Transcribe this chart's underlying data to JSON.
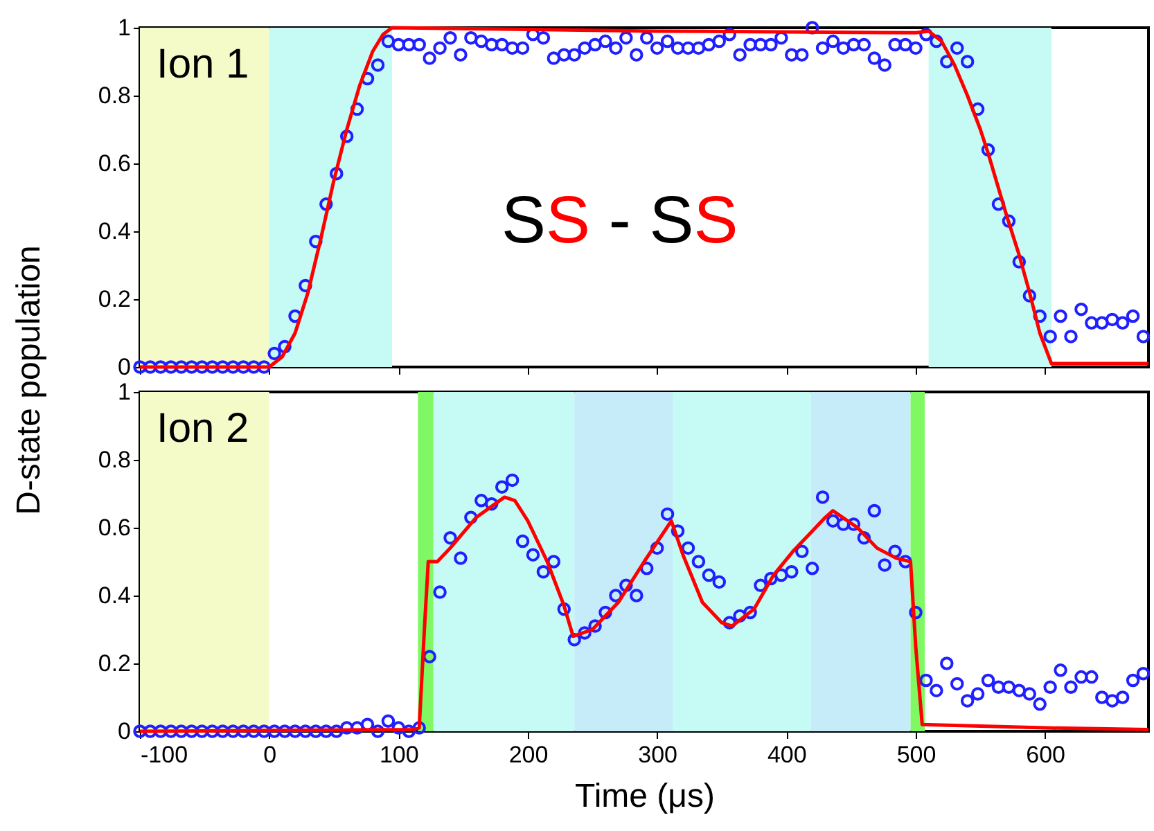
{
  "chart_data": [
    {
      "type": "scatter",
      "ylabel": "D-state population",
      "annotations": [
        "Ion 1",
        "SS - SS"
      ],
      "xlim": [
        -100,
        680
      ],
      "ylim": [
        0,
        1
      ],
      "xticks": [
        -100,
        0,
        100,
        200,
        300,
        400,
        500,
        600
      ],
      "yticks": [
        0,
        0.2,
        0.4,
        0.6,
        0.8,
        1
      ],
      "tick_labels": "y",
      "grid": false,
      "bands": [
        {
          "axis": "x",
          "from": -100,
          "to": 0,
          "color": "#f4fac8"
        },
        {
          "axis": "x",
          "from": 0,
          "to": 95,
          "color": "#c6faf4"
        },
        {
          "axis": "x",
          "from": 510,
          "to": 605,
          "color": "#c6faf4"
        }
      ],
      "series": [
        {
          "marker": "circle",
          "color": "#1f1fff",
          "x": [
            -100,
            -92,
            -84,
            -76,
            -68,
            -60,
            -52,
            -44,
            -36,
            -28,
            -20,
            -12,
            -4,
            4,
            12,
            20,
            28,
            36,
            44,
            52,
            60,
            68,
            76,
            84,
            92,
            100,
            108,
            116,
            124,
            132,
            140,
            148,
            156,
            164,
            172,
            180,
            188,
            196,
            204,
            212,
            220,
            228,
            236,
            244,
            252,
            260,
            268,
            276,
            284,
            292,
            300,
            308,
            316,
            324,
            332,
            340,
            348,
            356,
            364,
            372,
            380,
            388,
            396,
            404,
            412,
            420,
            428,
            436,
            444,
            452,
            460,
            468,
            476,
            484,
            492,
            500,
            508,
            516,
            524,
            532,
            540,
            548,
            556,
            564,
            572,
            580,
            588,
            596,
            604,
            612,
            620,
            628,
            636,
            644,
            652,
            660,
            668,
            676
          ],
          "values": [
            0,
            0,
            0,
            0,
            0,
            0,
            0,
            0,
            0,
            0,
            0,
            0,
            0,
            0.04,
            0.06,
            0.15,
            0.24,
            0.37,
            0.48,
            0.57,
            0.68,
            0.76,
            0.85,
            0.89,
            0.96,
            0.95,
            0.95,
            0.95,
            0.91,
            0.94,
            0.97,
            0.92,
            0.97,
            0.96,
            0.95,
            0.95,
            0.94,
            0.94,
            0.98,
            0.97,
            0.91,
            0.92,
            0.92,
            0.94,
            0.95,
            0.96,
            0.94,
            0.97,
            0.92,
            0.97,
            0.94,
            0.96,
            0.94,
            0.94,
            0.94,
            0.95,
            0.96,
            0.98,
            0.92,
            0.95,
            0.95,
            0.95,
            0.97,
            0.92,
            0.92,
            1.0,
            0.94,
            0.96,
            0.94,
            0.95,
            0.95,
            0.91,
            0.89,
            0.95,
            0.95,
            0.94,
            0.98,
            0.96,
            0.9,
            0.94,
            0.9,
            0.76,
            0.64,
            0.48,
            0.43,
            0.31,
            0.21,
            0.15,
            0.09,
            0.15,
            0.09,
            0.17,
            0.13,
            0.13,
            0.14,
            0.13,
            0.15,
            0.09
          ]
        },
        {
          "type": "line",
          "line_style": "solid",
          "color": "#ff0000",
          "x": [
            -100,
            0,
            10,
            20,
            30,
            40,
            50,
            60,
            70,
            80,
            88,
            95,
            300,
            500,
            510,
            520,
            530,
            540,
            550,
            556,
            570,
            580,
            588,
            596,
            605,
            680
          ],
          "values": [
            0,
            0,
            0.03,
            0.1,
            0.22,
            0.38,
            0.55,
            0.7,
            0.83,
            0.93,
            0.98,
            1.0,
            0.99,
            0.985,
            0.99,
            0.96,
            0.89,
            0.8,
            0.7,
            0.63,
            0.45,
            0.33,
            0.22,
            0.1,
            0.01,
            0.01
          ]
        }
      ]
    },
    {
      "type": "scatter",
      "xlabel": "Time (μs)",
      "annotations": [
        "Ion 2"
      ],
      "xlim": [
        -100,
        680
      ],
      "ylim": [
        0,
        1
      ],
      "xticks": [
        -100,
        0,
        100,
        200,
        300,
        400,
        500,
        600
      ],
      "yticks": [
        0,
        0.2,
        0.4,
        0.6,
        0.8,
        1
      ],
      "grid": false,
      "bands": [
        {
          "axis": "x",
          "from": -100,
          "to": 0,
          "color": "#f4fac8"
        },
        {
          "axis": "x",
          "from": 115,
          "to": 127,
          "color": "#80f864"
        },
        {
          "axis": "x",
          "from": 127,
          "to": 236,
          "color": "#c6faf4"
        },
        {
          "axis": "x",
          "from": 236,
          "to": 312,
          "color": "#c6ecfa"
        },
        {
          "axis": "x",
          "from": 312,
          "to": 419,
          "color": "#c6faf4"
        },
        {
          "axis": "x",
          "from": 419,
          "to": 496,
          "color": "#c6ecfa"
        },
        {
          "axis": "x",
          "from": 496,
          "to": 507,
          "color": "#80f864"
        }
      ],
      "series": [
        {
          "marker": "circle",
          "color": "#1f1fff",
          "x": [
            -100,
            -92,
            -84,
            -76,
            -68,
            -60,
            -52,
            -44,
            -36,
            -28,
            -20,
            -12,
            -4,
            4,
            12,
            20,
            28,
            36,
            44,
            52,
            60,
            68,
            76,
            84,
            92,
            100,
            108,
            116,
            124,
            132,
            140,
            148,
            156,
            164,
            172,
            180,
            188,
            196,
            204,
            212,
            220,
            228,
            236,
            244,
            252,
            260,
            268,
            276,
            284,
            292,
            300,
            308,
            316,
            324,
            332,
            340,
            348,
            356,
            364,
            372,
            380,
            388,
            396,
            404,
            412,
            420,
            428,
            436,
            444,
            452,
            460,
            468,
            476,
            484,
            492,
            500,
            508,
            516,
            524,
            532,
            540,
            548,
            556,
            564,
            572,
            580,
            588,
            596,
            604,
            612,
            620,
            628,
            636,
            644,
            652,
            660,
            668,
            676
          ],
          "values": [
            0,
            0,
            0,
            0,
            0,
            0,
            0,
            0,
            0,
            0,
            0,
            0,
            0,
            0,
            0,
            0,
            0,
            0,
            0,
            0,
            0.01,
            0.01,
            0.02,
            0,
            0.03,
            0.01,
            0,
            0.01,
            0.22,
            0.41,
            0.57,
            0.51,
            0.63,
            0.68,
            0.67,
            0.72,
            0.74,
            0.56,
            0.52,
            0.47,
            0.5,
            0.36,
            0.27,
            0.29,
            0.31,
            0.35,
            0.4,
            0.43,
            0.4,
            0.48,
            0.54,
            0.64,
            0.59,
            0.54,
            0.5,
            0.46,
            0.44,
            0.32,
            0.34,
            0.35,
            0.43,
            0.45,
            0.46,
            0.47,
            0.53,
            0.48,
            0.69,
            0.62,
            0.61,
            0.61,
            0.57,
            0.65,
            0.49,
            0.53,
            0.5,
            0.35,
            0.15,
            0.12,
            0.2,
            0.14,
            0.09,
            0.11,
            0.15,
            0.13,
            0.13,
            0.12,
            0.11,
            0.08,
            0.13,
            0.18,
            0.13,
            0.16,
            0.16,
            0.1,
            0.09,
            0.1,
            0.15,
            0.17
          ]
        },
        {
          "type": "line",
          "line_style": "solid",
          "color": "#ff0000",
          "x": [
            -100,
            110,
            116,
            120,
            123,
            130,
            140,
            160,
            182,
            190,
            200,
            215,
            228,
            235,
            250,
            270,
            290,
            311,
            320,
            335,
            350,
            358,
            375,
            390,
            405,
            415,
            430,
            436,
            455,
            470,
            485,
            496,
            500,
            505,
            600,
            680
          ],
          "values": [
            0,
            0.005,
            0.01,
            0.3,
            0.5,
            0.5,
            0.54,
            0.63,
            0.69,
            0.68,
            0.62,
            0.5,
            0.37,
            0.28,
            0.3,
            0.38,
            0.5,
            0.62,
            0.52,
            0.38,
            0.32,
            0.31,
            0.36,
            0.46,
            0.53,
            0.57,
            0.63,
            0.65,
            0.6,
            0.54,
            0.51,
            0.5,
            0.25,
            0.02,
            0.01,
            0.005
          ]
        }
      ]
    }
  ]
}
